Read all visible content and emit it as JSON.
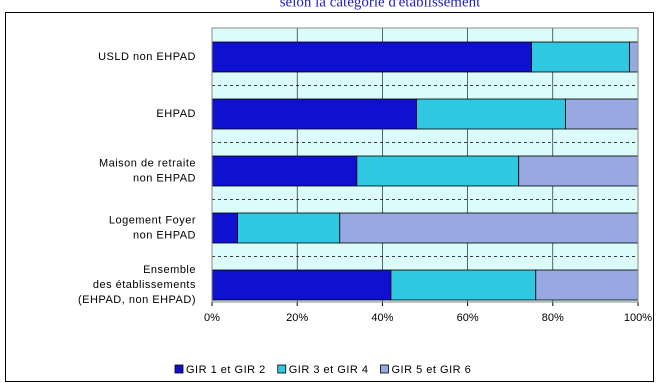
{
  "chart_data": {
    "type": "stacked-bar-horizontal",
    "title": "selon la catégorie d'établissement",
    "categories": [
      [
        "USLD non EHPAD"
      ],
      [
        "EHPAD"
      ],
      [
        "Maison de retraite",
        "non EHPAD"
      ],
      [
        "Logement Foyer",
        "non EHPAD"
      ],
      [
        "Ensemble",
        "des établissements",
        "(EHPAD, non EHPAD)"
      ]
    ],
    "series": [
      {
        "name": "GIR 1 et GIR 2",
        "color": "#1010d0",
        "values": [
          75,
          48,
          34,
          6,
          42
        ]
      },
      {
        "name": "GIR 3 et GIR 4",
        "color": "#30c8e0",
        "values": [
          23,
          35,
          38,
          24,
          34
        ]
      },
      {
        "name": "GIR 5 et GIR 6",
        "color": "#98a8e0",
        "values": [
          2,
          17,
          28,
          70,
          24
        ]
      }
    ],
    "xlim": [
      0,
      100
    ],
    "xticks": [
      {
        "value": 0,
        "label": "0%"
      },
      {
        "value": 20,
        "label": "20%"
      },
      {
        "value": 40,
        "label": "40%"
      },
      {
        "value": 60,
        "label": "60%"
      },
      {
        "value": 80,
        "label": "80%"
      },
      {
        "value": 100,
        "label": "100%"
      }
    ],
    "grid": true,
    "legend": "bottom"
  }
}
